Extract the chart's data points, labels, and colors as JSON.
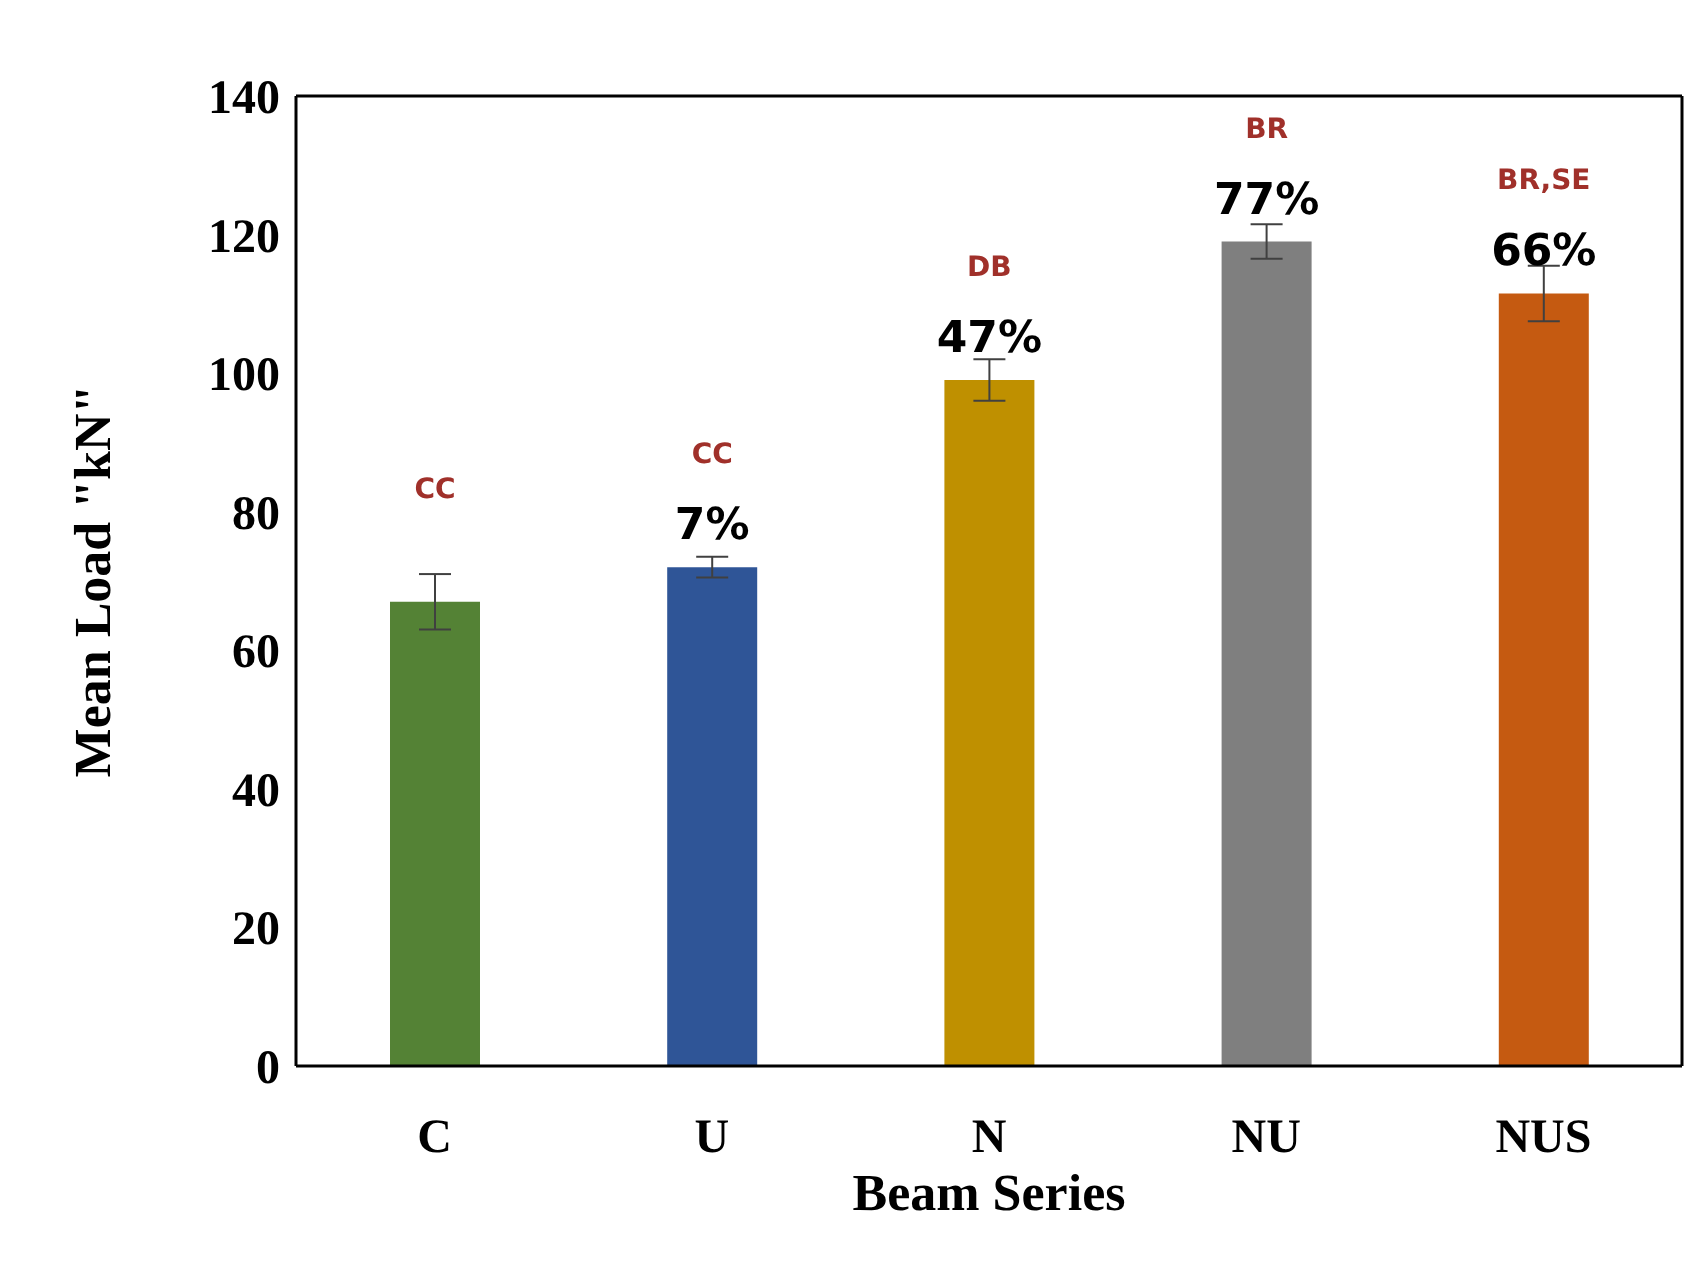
{
  "chart_data": {
    "type": "bar",
    "xlabel": "Beam Series",
    "ylabel": "Mean Load \"kN\"",
    "categories": [
      "C",
      "U",
      "N",
      "NU",
      "NUS"
    ],
    "values": [
      67,
      72,
      99,
      119,
      111.5
    ],
    "colors": [
      "#548235",
      "#2f5597",
      "#bf9000",
      "#7f7f7f",
      "#c55a11"
    ],
    "errors": [
      4,
      1.5,
      3,
      2.5,
      4
    ],
    "ylim": [
      0,
      140
    ],
    "yticks": [
      0,
      20,
      40,
      60,
      80,
      100,
      120,
      140
    ],
    "grid": false,
    "legend": false,
    "annotations": [
      "CC",
      "CC",
      "DB",
      "BR",
      "BR,SE",
      "7%",
      "47%",
      "77%",
      "66%"
    ]
  }
}
